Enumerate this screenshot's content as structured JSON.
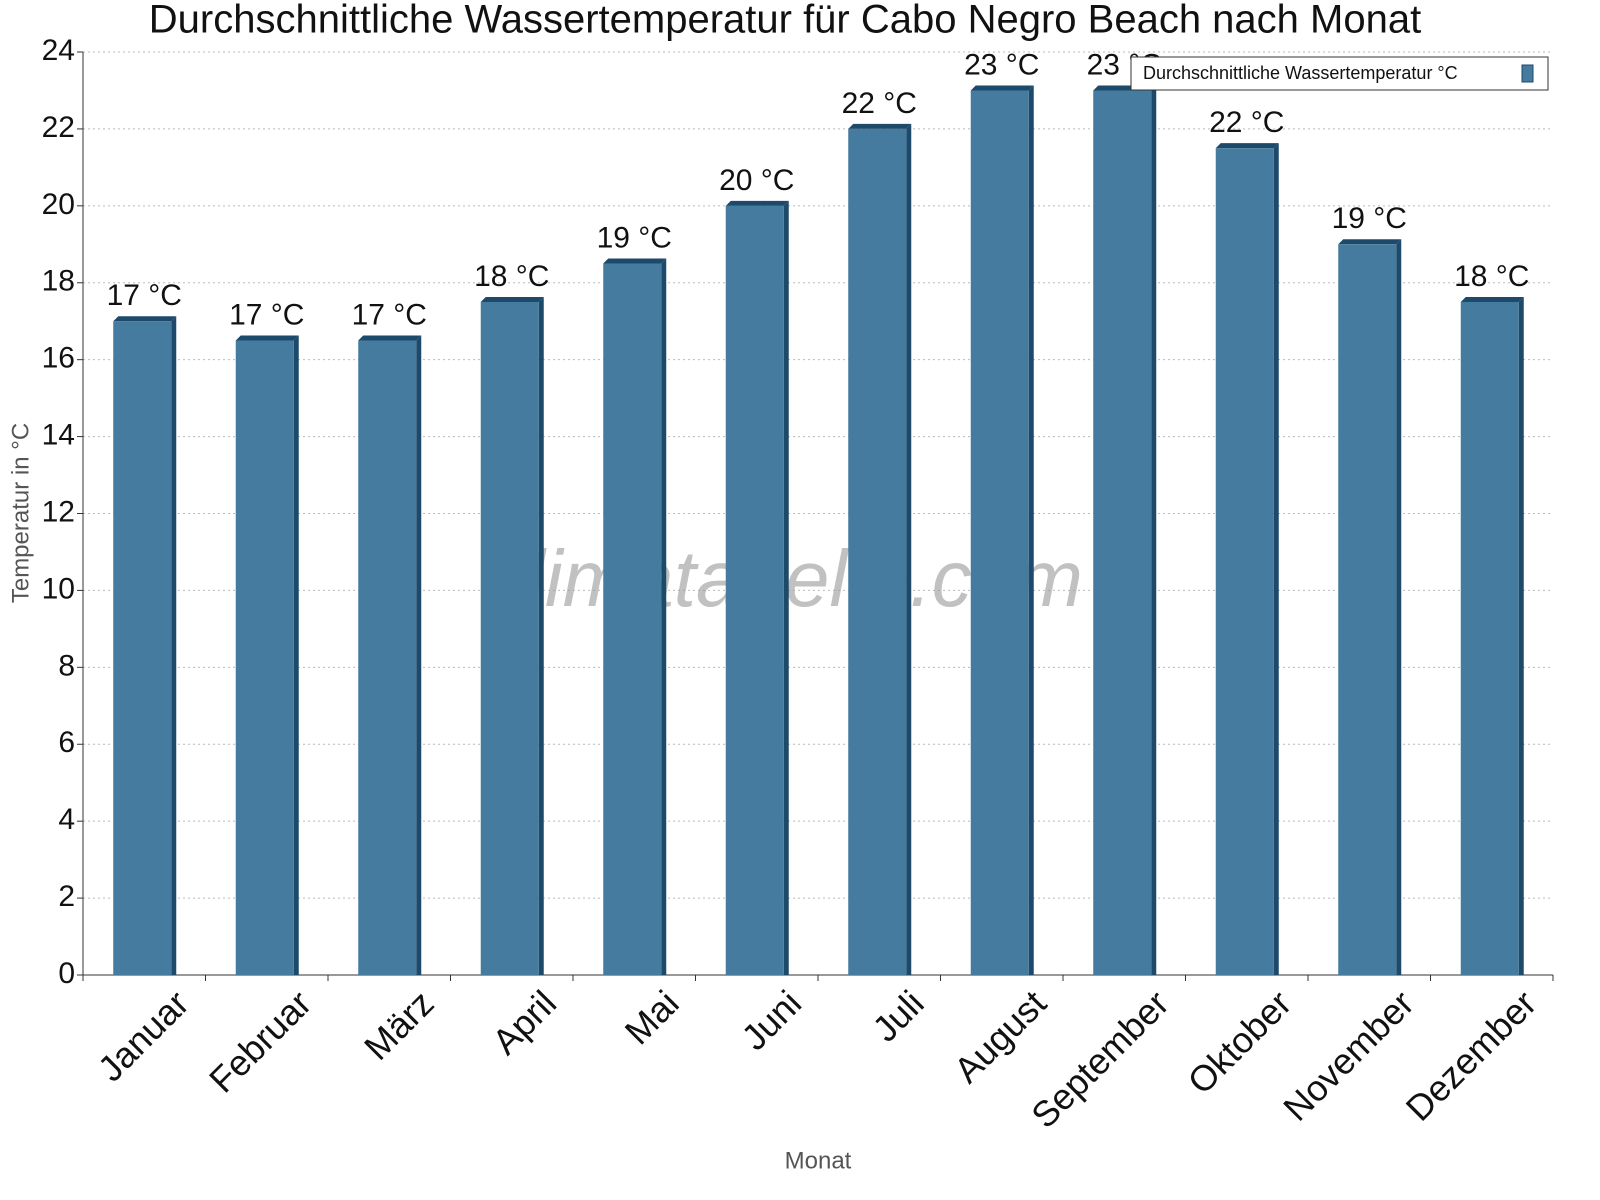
{
  "chart_data": {
    "type": "bar",
    "title": "Durchschnittliche Wassertemperatur für Cabo Negro Beach nach Monat",
    "watermark": "klimatabelle.com",
    "x_label": "Monat",
    "y_label": "Temperatur in °C",
    "categories": [
      "Januar",
      "Februar",
      "März",
      "April",
      "Mai",
      "Juni",
      "Juli",
      "August",
      "September",
      "Oktober",
      "November",
      "Dezember"
    ],
    "series": [
      {
        "name": "Durchschnittliche Wassertemperatur °C",
        "color": "#447b9e",
        "values": [
          17,
          16.5,
          16.5,
          17.5,
          18.5,
          20,
          22,
          23,
          23,
          21.5,
          19,
          17.5
        ],
        "value_labels": [
          "17 °C",
          "17 °C",
          "17 °C",
          "18 °C",
          "19 °C",
          "20 °C",
          "22 °C",
          "23 °C",
          "23 °C",
          "22 °C",
          "19 °C",
          "18 °C"
        ]
      }
    ],
    "ylim": [
      0,
      24
    ],
    "yticks": [
      0,
      2,
      4,
      6,
      8,
      10,
      12,
      14,
      16,
      18,
      20,
      22,
      24
    ],
    "grid": true,
    "legend": "top-right"
  }
}
